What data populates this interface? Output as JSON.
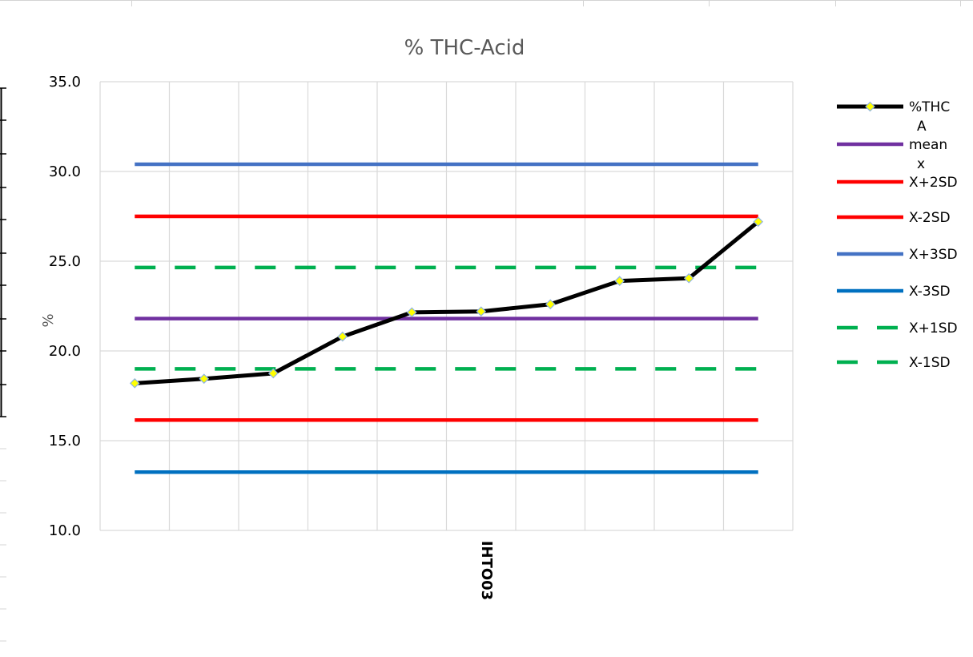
{
  "chart_data": {
    "type": "line",
    "title": "% THC-Acid",
    "ylabel": "%",
    "xlabel": "",
    "ylim": [
      10,
      35
    ],
    "y_ticks": [
      "10.0",
      "15.0",
      "20.0",
      "25.0",
      "30.0",
      "35.0"
    ],
    "categories": [
      "",
      "",
      "",
      "",
      "",
      "",
      "",
      "",
      "",
      ""
    ],
    "x_category_label": "IHTO03",
    "grid": true,
    "legend_position": "right",
    "series": [
      {
        "name": "%THC A",
        "legend_lines": [
          "%THC",
          "A"
        ],
        "style": "solid",
        "marker": "diamond",
        "color": "#000000",
        "marker_color": "#ffff00",
        "values": [
          18.2,
          18.45,
          18.75,
          20.8,
          22.15,
          22.2,
          22.6,
          23.9,
          24.05,
          27.2
        ]
      },
      {
        "name": "mean x",
        "legend_lines": [
          "mean",
          "x"
        ],
        "style": "solid",
        "color": "#7030a0",
        "values": [
          21.8,
          21.8,
          21.8,
          21.8,
          21.8,
          21.8,
          21.8,
          21.8,
          21.8,
          21.8
        ]
      },
      {
        "name": "X+2SD",
        "legend_lines": [
          "X+2SD"
        ],
        "style": "solid",
        "color": "#ff0000",
        "values": [
          27.5,
          27.5,
          27.5,
          27.5,
          27.5,
          27.5,
          27.5,
          27.5,
          27.5,
          27.5
        ]
      },
      {
        "name": "X-2SD",
        "legend_lines": [
          "X-2SD"
        ],
        "style": "solid",
        "color": "#ff0000",
        "values": [
          16.15,
          16.15,
          16.15,
          16.15,
          16.15,
          16.15,
          16.15,
          16.15,
          16.15,
          16.15
        ]
      },
      {
        "name": "X+3SD",
        "legend_lines": [
          "X+3SD"
        ],
        "style": "solid",
        "color": "#4472c4",
        "values": [
          30.4,
          30.4,
          30.4,
          30.4,
          30.4,
          30.4,
          30.4,
          30.4,
          30.4,
          30.4
        ]
      },
      {
        "name": "X-3SD",
        "legend_lines": [
          "X-3SD"
        ],
        "style": "solid",
        "color": "#0070c0",
        "values": [
          13.25,
          13.25,
          13.25,
          13.25,
          13.25,
          13.25,
          13.25,
          13.25,
          13.25,
          13.25
        ]
      },
      {
        "name": "X+1SD",
        "legend_lines": [
          "X+1SD"
        ],
        "style": "dashed",
        "color": "#00b050",
        "values": [
          24.65,
          24.65,
          24.65,
          24.65,
          24.65,
          24.65,
          24.65,
          24.65,
          24.65,
          24.65
        ]
      },
      {
        "name": "X-1SD",
        "legend_lines": [
          "X-1SD"
        ],
        "style": "dashed",
        "color": "#00b050",
        "values": [
          19.0,
          19.0,
          19.0,
          19.0,
          19.0,
          19.0,
          19.0,
          19.0,
          19.0,
          19.0
        ]
      }
    ]
  }
}
